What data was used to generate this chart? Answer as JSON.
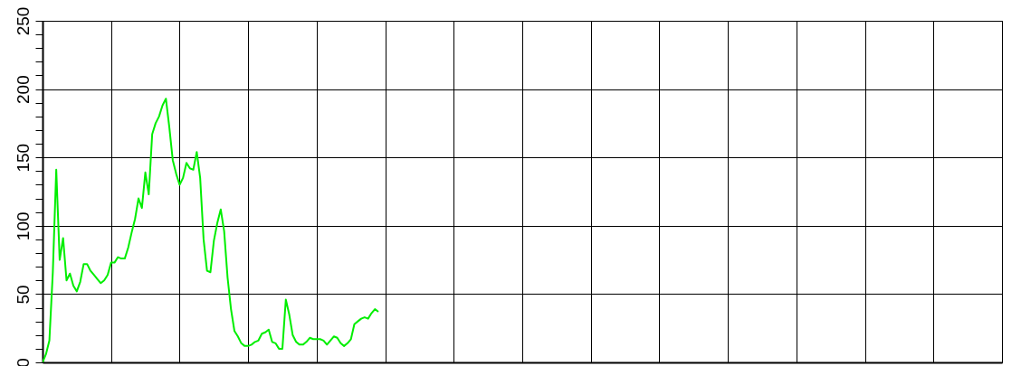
{
  "chart_data": {
    "type": "line",
    "categories": [
      null,
      null,
      null,
      null,
      null,
      null,
      null,
      null,
      null,
      null,
      null,
      null,
      null,
      null,
      null,
      null,
      null,
      null,
      null,
      null,
      null,
      null,
      null,
      null,
      null,
      null,
      null,
      null,
      null,
      null,
      null,
      null,
      null,
      null,
      null,
      null,
      null,
      null,
      null,
      null,
      null,
      null,
      null,
      null,
      null,
      null,
      null,
      null,
      null,
      null,
      null,
      null,
      null,
      null,
      null,
      null,
      null,
      null,
      null,
      null,
      null,
      null,
      null,
      null,
      null,
      null,
      null,
      null,
      null,
      null,
      null,
      null,
      null,
      null,
      null,
      null,
      null,
      null,
      null,
      null,
      null,
      null,
      null,
      null,
      null,
      null,
      null,
      null,
      null,
      null,
      null,
      null,
      null,
      null,
      null,
      null,
      null,
      null,
      null,
      null,
      null,
      null,
      null,
      null,
      null,
      null,
      null,
      null,
      null,
      null,
      null,
      null,
      null,
      null,
      null,
      null,
      null,
      null,
      null,
      null,
      null,
      null,
      null,
      null,
      null,
      null,
      null,
      null,
      null,
      null,
      null,
      null,
      null,
      null,
      null,
      null,
      null,
      null,
      null,
      null,
      null,
      null,
      null,
      null,
      null,
      null,
      null,
      null,
      null,
      null,
      null,
      null,
      null,
      null,
      null,
      null,
      null,
      null,
      null,
      null,
      null,
      null,
      null,
      null,
      null,
      null,
      null,
      null,
      null,
      null,
      null,
      null,
      null,
      null,
      null,
      null,
      null,
      null,
      null,
      null,
      null,
      null,
      null,
      null,
      null,
      null,
      null,
      null,
      null,
      null,
      null,
      null,
      null,
      null,
      null,
      null,
      null,
      null,
      null,
      null,
      null,
      null,
      null,
      null,
      null,
      null,
      null,
      null,
      null,
      null,
      null,
      null,
      null,
      null,
      null,
      null,
      null,
      null,
      null,
      null,
      null,
      null,
      null,
      null,
      null,
      null,
      null,
      null,
      null,
      null,
      null,
      null,
      null,
      null,
      null,
      null,
      null,
      null,
      null,
      null,
      null,
      null,
      null,
      null,
      null,
      null,
      null,
      null,
      null,
      null,
      null,
      null,
      null,
      null,
      null,
      null,
      null,
      null,
      null,
      null,
      null,
      null,
      null,
      null,
      null,
      null,
      null,
      null,
      null,
      null,
      null,
      null,
      null,
      null,
      null,
      null,
      null,
      null,
      null,
      null,
      null
    ],
    "series": [
      {
        "color": "#00ee00",
        "values": [
          0,
          6,
          16,
          66,
          141,
          75,
          91,
          60,
          65,
          56,
          52,
          59,
          72,
          72,
          67,
          64,
          61,
          58,
          60,
          64,
          73,
          73,
          77,
          76,
          76,
          84,
          95,
          105,
          120,
          113,
          139,
          123,
          167,
          175,
          180,
          188,
          193,
          172,
          148,
          138,
          130,
          135,
          146,
          142,
          141,
          154,
          135,
          90,
          67,
          66,
          89,
          102,
          112,
          96,
          62,
          39,
          23,
          19,
          14,
          12,
          12,
          13,
          15,
          16,
          21,
          22,
          24,
          15,
          14,
          10,
          10,
          46,
          35,
          20,
          15,
          13,
          13,
          15,
          18,
          17,
          17,
          17,
          16,
          13,
          16,
          19,
          18,
          14,
          12,
          14,
          17,
          28,
          30,
          32,
          33,
          32,
          36,
          39,
          37,
          null,
          null,
          null,
          null,
          null,
          null,
          null,
          null,
          null,
          null,
          null,
          null,
          null,
          null,
          null,
          null,
          null,
          null,
          null,
          null,
          null,
          null,
          null,
          null,
          null,
          null,
          null,
          null,
          null,
          null,
          null,
          null,
          null,
          null,
          null,
          null,
          null,
          null,
          null,
          null,
          null,
          null,
          null,
          null,
          null,
          null,
          null,
          null,
          null,
          null,
          null,
          null,
          null,
          null,
          null,
          null,
          null,
          null,
          null,
          null,
          null,
          null,
          null,
          null,
          null,
          null,
          null,
          null,
          null,
          null,
          null,
          null,
          null,
          null,
          null,
          null,
          null,
          null,
          null,
          null,
          null,
          null,
          null,
          null,
          null,
          null,
          null,
          null,
          null,
          null,
          null,
          null,
          null,
          null,
          null,
          null,
          null,
          null,
          null,
          null,
          null,
          null,
          null,
          null,
          null,
          null,
          null,
          null,
          null,
          null,
          null,
          null,
          null,
          null,
          null,
          null,
          null,
          null,
          null,
          null,
          null,
          null,
          null,
          null,
          null,
          null,
          null,
          null,
          null,
          null,
          null,
          null,
          null,
          null,
          null,
          null,
          null,
          null,
          null,
          null,
          null,
          null,
          null,
          null,
          null,
          null,
          null,
          null,
          null,
          null,
          null,
          null,
          null,
          null,
          null,
          null,
          null,
          null,
          null,
          null,
          null,
          null,
          null,
          null,
          null,
          null,
          null,
          null,
          null,
          null,
          null,
          null,
          null,
          null,
          null,
          null,
          null,
          null,
          null,
          null,
          null,
          null
        ]
      }
    ],
    "ylim": [
      0,
      250
    ],
    "yticks": [
      0,
      {
        "value": 10,
        "label": null
      },
      {
        "value": 20,
        "label": null
      },
      {
        "value": 30,
        "label": null
      },
      {
        "value": 40,
        "label": null
      },
      50,
      {
        "value": 60,
        "label": null
      },
      {
        "value": 70,
        "label": null
      },
      {
        "value": 80,
        "label": null
      },
      {
        "value": 90,
        "label": null
      },
      100,
      {
        "value": 110,
        "label": null
      },
      {
        "value": 120,
        "label": null
      },
      {
        "value": 130,
        "label": null
      },
      {
        "value": 140,
        "label": null
      },
      150,
      {
        "value": 160,
        "label": null
      },
      {
        "value": 170,
        "label": null
      },
      {
        "value": 180,
        "label": null
      },
      {
        "value": 190,
        "label": null
      },
      200,
      {
        "value": 210,
        "label": null
      },
      {
        "value": 220,
        "label": null
      },
      {
        "value": 230,
        "label": null
      },
      {
        "value": 240,
        "label": null
      },
      250
    ],
    "grid": true,
    "tick_labels": "y",
    "marker": "none",
    "line_style": "solid"
  }
}
